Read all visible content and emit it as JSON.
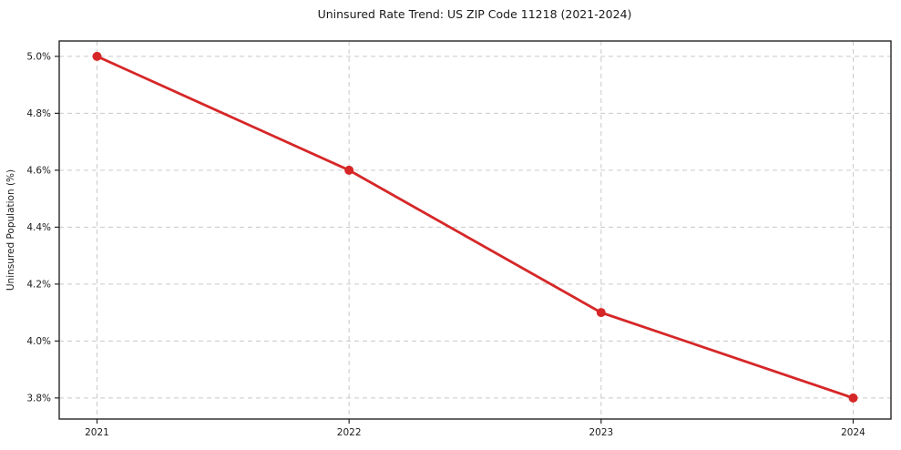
{
  "chart_data": {
    "type": "line",
    "title": "Uninsured Rate Trend: US ZIP Code 11218 (2021-2024)",
    "xlabel": "",
    "ylabel": "Uninsured Population (%)",
    "x": [
      2021,
      2022,
      2023,
      2024
    ],
    "values": [
      5.0,
      4.6,
      4.1,
      3.8
    ],
    "xticks": {
      "values": [
        2021,
        2022,
        2023,
        2024
      ],
      "labels": [
        "2021",
        "2022",
        "2023",
        "2024"
      ]
    },
    "yticks": {
      "values": [
        3.8,
        4.0,
        4.2,
        4.4,
        4.6,
        4.8,
        5.0
      ],
      "labels": [
        "3.8%",
        "4.0%",
        "4.2%",
        "4.4%",
        "4.6%",
        "4.8%",
        "5.0%"
      ]
    },
    "xlim": [
      2020.85,
      2024.15
    ],
    "ylim": [
      3.726,
      5.054
    ],
    "grid": true,
    "grid_style": "dashed",
    "legend": "none",
    "colors": {
      "line": "#d62728",
      "marker": "#d62728",
      "grid": "#c9c9c9",
      "spine": "#262626",
      "text": "#1a1a1a",
      "background": "#ffffff"
    }
  }
}
